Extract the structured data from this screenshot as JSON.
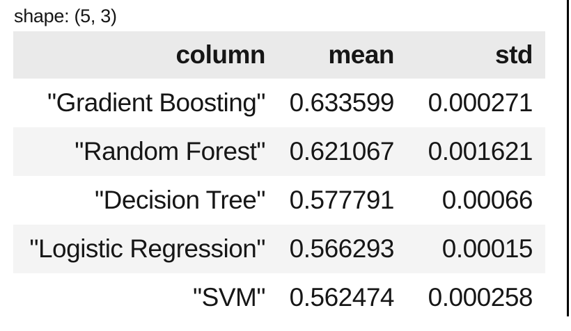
{
  "shape_label": "shape: (5, 3)",
  "table": {
    "headers": [
      "column",
      "mean",
      "std"
    ],
    "rows": [
      [
        "\"Gradient Boosting\"",
        "0.633599",
        "0.000271"
      ],
      [
        "\"Random Forest\"",
        "0.621067",
        "0.001621"
      ],
      [
        "\"Decision Tree\"",
        "0.577791",
        "0.00066"
      ],
      [
        "\"Logistic Regression\"",
        "0.566293",
        "0.00015"
      ],
      [
        "\"SVM\"",
        "0.562474",
        "0.000258"
      ]
    ]
  },
  "colors": {
    "header_bg": "#eaeaea",
    "stripe_bg": "#f4f4f4",
    "text": "#161616",
    "divider": "#000000"
  }
}
